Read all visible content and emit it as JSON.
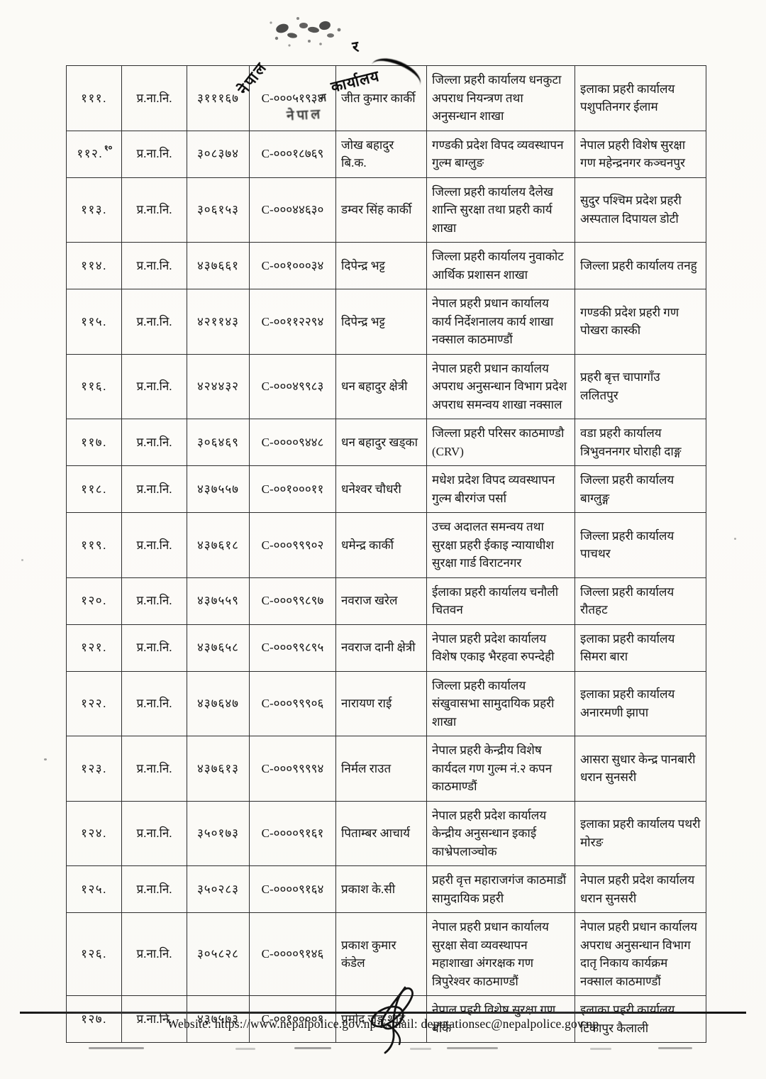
{
  "table": {
    "rows": [
      {
        "sn": "१११.",
        "sn_note": "",
        "rank": "प्र.ना.नि.",
        "number": "३१११६७",
        "code": "C-०००५१९३४",
        "name": "जीत कुमार कार्की",
        "office_from": "जिल्ला प्रहरी कार्यालय धनकुटा अपराध नियन्त्रण तथा अनुसन्धान शाखा",
        "office_to": "इलाका प्रहरी कार्यालय पशुपतिनगर ईलाम"
      },
      {
        "sn": "११२.",
        "sn_note": "१०",
        "rank": "प्र.ना.नि.",
        "number": "३०८३७४",
        "code": "C-०००१८७६९",
        "name": "जोख बहादुर बि.क.",
        "office_from": "गण्डकी प्रदेश विपद व्यवस्थापन गुल्म बाग्लुङ",
        "office_to": "नेपाल प्रहरी विशेष सुरक्षा गण महेन्द्रनगर कञ्चनपुर"
      },
      {
        "sn": "११३.",
        "sn_note": "",
        "rank": "प्र.ना.नि.",
        "number": "३०६१५३",
        "code": "C-०००४४६३०",
        "name": "डम्वर सिंह कार्की",
        "office_from": "जिल्ला प्रहरी कार्यालय दैलेख शान्ति सुरक्षा तथा प्रहरी कार्य शाखा",
        "office_to": "सुदुर पश्चिम प्रदेश प्रहरी अस्पताल दिपायल डोटी"
      },
      {
        "sn": "११४.",
        "sn_note": "",
        "rank": "प्र.ना.नि.",
        "number": "४३७६६१",
        "code": "C-००१०००३४",
        "name": "दिपेन्द्र भट्ट",
        "office_from": "जिल्ला प्रहरी कार्यालय नुवाकोट आर्थिक प्रशासन शाखा",
        "office_to": "जिल्ला प्रहरी कार्यालय तनहु"
      },
      {
        "sn": "११५.",
        "sn_note": "",
        "rank": "प्र.ना.नि.",
        "number": "४२११४३",
        "code": "C-००११२२९४",
        "name": "दिपेन्द्र भट्ट",
        "office_from": "नेपाल प्रहरी प्रधान कार्यालय कार्य निर्देशनालय कार्य शाखा नक्साल काठमाण्डौं",
        "office_to": "गण्डकी प्रदेश प्रहरी गण पोखरा कास्की"
      },
      {
        "sn": "११६.",
        "sn_note": "",
        "rank": "प्र.ना.नि.",
        "number": "४२४४३२",
        "code": "C-०००४९९८३",
        "name": "धन बहादुर क्षेत्री",
        "office_from": "नेपाल प्रहरी प्रधान कार्यालय अपराध अनुसन्धान विभाग प्रदेश अपराध समन्वय शाखा नक्साल",
        "office_to": "प्रहरी बृत्त चापागाँउ ललितपुर"
      },
      {
        "sn": "११७.",
        "sn_note": "",
        "rank": "प्र.ना.नि.",
        "number": "३०६४६९",
        "code": "C-००००९४४८",
        "name": "धन बहादुर खड्का",
        "office_from": "जिल्ला प्रहरी परिसर काठमाण्डौ (CRV)",
        "office_to": "वडा प्रहरी कार्यालय त्रिभुवननगर घोराही दाङ्ग"
      },
      {
        "sn": "११८.",
        "sn_note": "",
        "rank": "प्र.ना.नि.",
        "number": "४३७५५७",
        "code": "C-००१०००११",
        "name": "धनेश्वर चौधरी",
        "office_from": "मधेश प्रदेश विपद व्यवस्थापन गुल्म बीरगंज पर्सा",
        "office_to": "जिल्ला प्रहरी कार्यालय बाग्लुङ्ग"
      },
      {
        "sn": "११९.",
        "sn_note": "",
        "rank": "प्र.ना.नि.",
        "number": "४३७६१८",
        "code": "C-०००९९९०२",
        "name": "धमेन्द्र कार्की",
        "office_from": "उच्च अदालत समन्वय तथा सुरक्षा प्रहरी ईकाइ न्यायाधीश सुरक्षा गार्ड विराटनगर",
        "office_to": "जिल्ला प्रहरी कार्यालय पाचथर"
      },
      {
        "sn": "१२०.",
        "sn_note": "",
        "rank": "प्र.ना.नि.",
        "number": "४३७५५९",
        "code": "C-०००९९८९७",
        "name": "नवराज खरेल",
        "office_from": "ईलाका प्रहरी कार्यालय चनौली चितवन",
        "office_to": "जिल्ला प्रहरी कार्यालय रौतहट"
      },
      {
        "sn": "१२१.",
        "sn_note": "",
        "rank": "प्र.ना.नि.",
        "number": "४३७६५८",
        "code": "C-०००९९८९५",
        "name": "नवराज दानी क्षेत्री",
        "office_from": "नेपाल प्रहरी प्रदेश कार्यालय विशेष एकाइ भैरहवा रुपन्देही",
        "office_to": "इलाका प्रहरी कार्यालय सिमरा बारा"
      },
      {
        "sn": "१२२.",
        "sn_note": "",
        "rank": "प्र.ना.नि.",
        "number": "४३७६४७",
        "code": "C-०००९९९०६",
        "name": "नारायण राई",
        "office_from": "जिल्ला प्रहरी कार्यालय संखुवासभा सामुदायिक प्रहरी शाखा",
        "office_to": "इलाका प्रहरी कार्यालय अनारमणी झापा"
      },
      {
        "sn": "१२३.",
        "sn_note": "",
        "rank": "प्र.ना.नि.",
        "number": "४३७६१३",
        "code": "C-०००९९९९४",
        "name": "निर्मल राउत",
        "office_from": "नेपाल प्रहरी केन्द्रीय विशेष कार्यदल गण गुल्म नं.२ कपन काठमाण्डौं",
        "office_to": "आसरा सुधार केन्द्र पानबारी धरान सुनसरी"
      },
      {
        "sn": "१२४.",
        "sn_note": "",
        "rank": "प्र.ना.नि.",
        "number": "३५०१७३",
        "code": "C-००००९१६१",
        "name": "पिताम्बर आचार्य",
        "office_from": "नेपाल प्रहरी प्रदेश कार्यालय केन्द्रीय अनुसन्धान इकाई काभ्रेपलाञ्चोक",
        "office_to": "इलाका प्रहरी कार्यालय पथरी मोरङ"
      },
      {
        "sn": "१२५.",
        "sn_note": "",
        "rank": "प्र.ना.नि.",
        "number": "३५०२८३",
        "code": "C-००००९१६४",
        "name": "प्रकाश के.सी",
        "office_from": "प्रहरी वृत्त महाराजगंज काठमाडौं सामुदायिक प्रहरी",
        "office_to": "नेपाल प्रहरी प्रदेश कार्यालय धरान सुनसरी"
      },
      {
        "sn": "१२६.",
        "sn_note": "",
        "rank": "प्र.ना.नि.",
        "number": "३०५८२८",
        "code": "C-००००९१४६",
        "name": "प्रकाश कुमार कंडेल",
        "office_from": "नेपाल प्रहरी प्रधान कार्यालय सुरक्षा सेवा व्यवस्थापन महाशाखा अंगरक्षक गण त्रिपुरेश्वर काठमाण्डौं",
        "office_to": "नेपाल प्रहरी प्रधान कार्यालय अपराध अनुसन्धान विभाग दातृ निकाय कार्यक्रम नक्साल काठमाण्डौं"
      },
      {
        "sn": "१२७.",
        "sn_note": "",
        "rank": "प्र.ना.नि.",
        "number": "४३७५७३",
        "code": "C-००१००००१",
        "name": "प्रमोद जङ्ग शाह",
        "office_from": "नेपाल प्रहरी विशेष सुरक्षा गण बाँके",
        "office_to": "इलाका प्रहरी कार्यालय टिकापुर कैलाली"
      }
    ]
  },
  "stamp": {
    "arc_text": "नेपाल",
    "fragment_r": "र",
    "diagonal_text": "कार्यालय",
    "fragment_n": "न",
    "blur_text": "नेपाल"
  },
  "footer": {
    "website_label": "Website:",
    "website_url": "https://www.nepalpolice.gov.np",
    "email_label": "E-mail:",
    "email_address": "deputationsec@nepalpolice.gov.np"
  }
}
